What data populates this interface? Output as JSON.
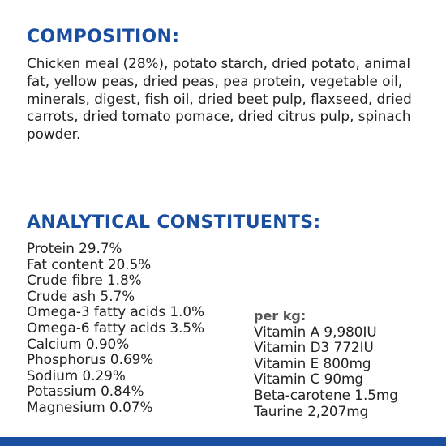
{
  "colors": {
    "heading": "#1a4fa0",
    "text": "#222222",
    "footer_band": "#1a4fa0"
  },
  "composition": {
    "heading": "COMPOSITION:",
    "text": "Chicken meal (28%), potato starch, dried potato, animal fat, yellow peas, dried peas, pea protein, vegetable oil, minerals, digest, fish oil, dried beet pulp, flaxseed, dried carrots, dried tomato pomace, dried citrus pulp, spinach powder."
  },
  "analytical": {
    "heading": "ANALYTICAL CONSTITUENTS:",
    "constituents": [
      "Protein 29.7%",
      "Fat content 20.5%",
      "Crude fibre 1.8%",
      "Crude ash 5.7%",
      "Omega-3 fatty acids 1.0%",
      "Omega-6 fatty acids 3.5%",
      "Calcium 0.90%",
      "Phosphorus 0.69%",
      "Sodium 0.29%",
      "Potassium 0.84%",
      "Magnesium 0.07%"
    ],
    "per_kg_label": "per kg:",
    "vitamins": [
      "Vitamin A 9,980IU",
      "Vitamin D3 772IU",
      "Vitamin E 800mg",
      "Vitamin C 90mg",
      "Beta-carotene 1.5mg",
      "Taurine 2,207mg"
    ]
  }
}
